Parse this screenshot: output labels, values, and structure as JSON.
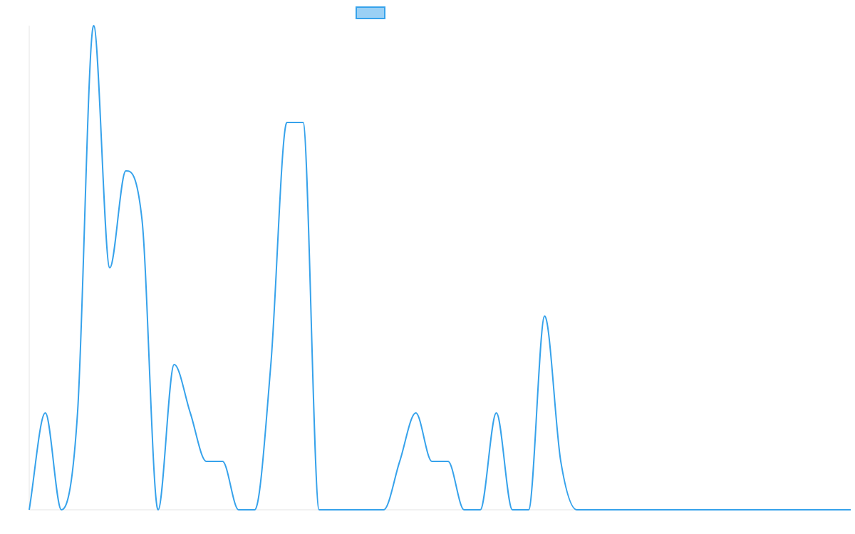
{
  "colors": {
    "series_line": "#36a2eb",
    "series_fill": "#9ad0f5",
    "axis": "#e6e6e6",
    "background": "#ffffff"
  },
  "chart_data": {
    "type": "line",
    "title": "",
    "xlabel": "",
    "ylabel": "",
    "grid": false,
    "legend": "top-center",
    "x": [
      0,
      1,
      2,
      3,
      4,
      5,
      6,
      7,
      8,
      9,
      10,
      11,
      12,
      13,
      14,
      15,
      16,
      17,
      18,
      19,
      20,
      21,
      22,
      23,
      24,
      25,
      26,
      27,
      28,
      29,
      30,
      31,
      32,
      33,
      34,
      35,
      36,
      37,
      38,
      39,
      40,
      41,
      42,
      43,
      44,
      45,
      46,
      47,
      48,
      49,
      50,
      51
    ],
    "ylim": [
      0,
      10
    ],
    "series": [
      {
        "name": "",
        "values": [
          0,
          2,
          0,
          2,
          10,
          5,
          7,
          6,
          0,
          3,
          2,
          1,
          1,
          0,
          0,
          3,
          8,
          8,
          0,
          0,
          0,
          0,
          0,
          1,
          2,
          1,
          1,
          0,
          0,
          2,
          0,
          0,
          4,
          1,
          0,
          0,
          0,
          0,
          0,
          0,
          0,
          0,
          0,
          0,
          0,
          0,
          0,
          0,
          0,
          0,
          0,
          0
        ]
      }
    ]
  }
}
